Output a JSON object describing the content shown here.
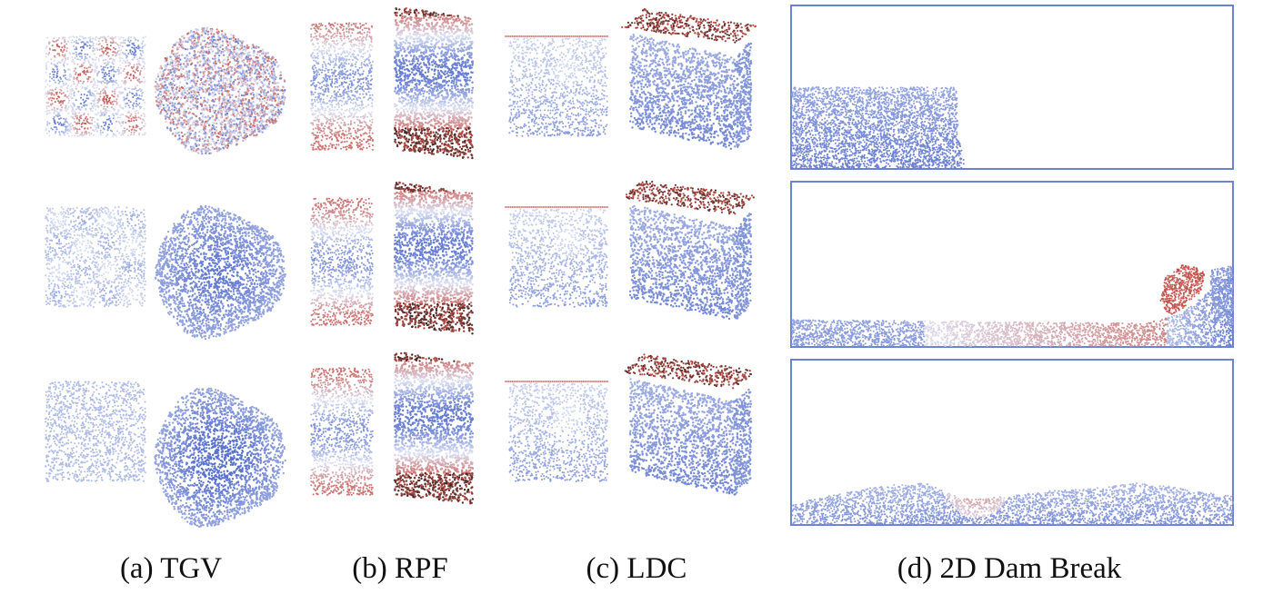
{
  "captions": {
    "a": "(a) TGV",
    "b": "(b) RPF",
    "c": "(c) LDC",
    "d": "(d) 2D Dam Break"
  },
  "colors": {
    "particle_blue": "#5a72cf",
    "particle_light": "#dde2f4",
    "particle_red": "#c9524a",
    "particle_dark": "#2a2020",
    "dam_frame": "#6c83d4",
    "background": "#ffffff"
  },
  "panel_labels": {
    "tgv": [
      "tgv-2d",
      "tgv-3d"
    ],
    "rpf": [
      "rpf-2d",
      "rpf-3d"
    ],
    "ldc": [
      "ldc-2d",
      "ldc-3d"
    ],
    "dam": [
      "dam-break-initial",
      "dam-break-wave",
      "dam-break-late"
    ]
  }
}
